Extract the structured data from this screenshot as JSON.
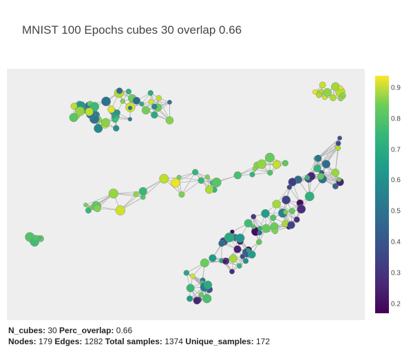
{
  "title": "MNIST 100 Epochs cubes 30 overlap 0.66",
  "footer": {
    "line1": [
      {
        "label": "N_cubes:",
        "value": " 30 "
      },
      {
        "label": "Perc_overlap:",
        "value": " 0.66"
      }
    ],
    "line2": [
      {
        "label": "Nodes:",
        "value": " 179 "
      },
      {
        "label": "Edges:",
        "value": " 1282 "
      },
      {
        "label": "Total samples:",
        "value": " 1374 "
      },
      {
        "label": "Unique_samples:",
        "value": " 172"
      }
    ]
  },
  "colors": {
    "edge": "#b4b4b4",
    "plot_bg": "#eeeeee",
    "colorscale": "viridis"
  },
  "chart_data": {
    "type": "network",
    "colorbar": {
      "ticks": [
        "0.2",
        "0.3",
        "0.4",
        "0.5",
        "0.6",
        "0.7",
        "0.8",
        "0.9"
      ],
      "range": [
        0.17,
        0.94
      ]
    },
    "clusters": [
      {
        "name": "upper-left",
        "cx": 0.33,
        "cy": 0.83,
        "rx": 0.15,
        "ry": 0.085,
        "count": 48,
        "cmin": 0.42,
        "cmax": 0.92,
        "density": 6
      },
      {
        "name": "upper-right",
        "cx": 0.9,
        "cy": 0.9,
        "rx": 0.055,
        "ry": 0.04,
        "count": 14,
        "cmin": 0.8,
        "cmax": 0.93,
        "density": 5
      },
      {
        "name": "middle-band",
        "cx": 0.51,
        "cy": 0.52,
        "rx": 0.29,
        "ry": 0.05,
        "count": 30,
        "cmin": 0.65,
        "cmax": 0.93,
        "density": 5
      },
      {
        "name": "lower-right",
        "cx": 0.72,
        "cy": 0.3,
        "rx": 0.22,
        "ry": 0.24,
        "count": 80,
        "cmin": 0.18,
        "cmax": 0.9,
        "density": 7
      },
      {
        "name": "small-left",
        "cx": 0.08,
        "cy": 0.33,
        "rx": 0.025,
        "ry": 0.02,
        "count": 7,
        "cmin": 0.7,
        "cmax": 0.76,
        "density": 4
      }
    ]
  }
}
